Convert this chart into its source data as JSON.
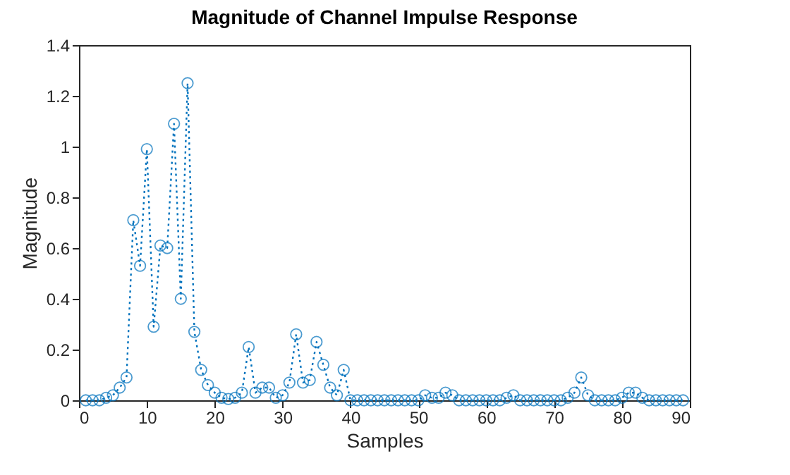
{
  "chart_data": {
    "type": "line",
    "title": "Magnitude of Channel Impulse Response",
    "xlabel": "Samples",
    "ylabel": "Magnitude",
    "x": [
      1,
      2,
      3,
      4,
      5,
      6,
      7,
      8,
      9,
      10,
      11,
      12,
      13,
      14,
      15,
      16,
      17,
      18,
      19,
      20,
      21,
      22,
      23,
      24,
      25,
      26,
      27,
      28,
      29,
      30,
      31,
      32,
      33,
      34,
      35,
      36,
      37,
      38,
      39,
      40,
      41,
      42,
      43,
      44,
      45,
      46,
      47,
      48,
      49,
      50,
      51,
      52,
      53,
      54,
      55,
      56,
      57,
      58,
      59,
      60,
      61,
      62,
      63,
      64,
      65,
      66,
      67,
      68,
      69,
      70,
      71,
      72,
      73,
      74,
      75,
      76,
      77,
      78,
      79,
      80,
      81,
      82,
      83,
      84,
      85,
      86,
      87,
      88,
      89
    ],
    "series": [
      {
        "color": "#0072bd",
        "values": [
          0,
          0,
          0,
          0.01,
          0.02,
          0.05,
          0.09,
          0.71,
          0.53,
          0.99,
          0.29,
          0.61,
          0.6,
          1.09,
          0.4,
          1.25,
          0.27,
          0.12,
          0.06,
          0.03,
          0.01,
          0.005,
          0.01,
          0.03,
          0.21,
          0.03,
          0.05,
          0.05,
          0.01,
          0.02,
          0.07,
          0.26,
          0.07,
          0.08,
          0.23,
          0.14,
          0.05,
          0.02,
          0.12,
          0,
          0,
          0,
          0,
          0,
          0,
          0,
          0,
          0,
          0,
          0,
          0.02,
          0.01,
          0.01,
          0.03,
          0.02,
          0,
          0,
          0,
          0,
          0,
          0,
          0,
          0.01,
          0.02,
          0,
          0,
          0,
          0,
          0,
          0,
          0,
          0.01,
          0.03,
          0.09,
          0.02,
          0,
          0,
          0,
          0,
          0.01,
          0.03,
          0.03,
          0.01,
          0,
          0,
          0,
          0,
          0,
          0
        ]
      }
    ],
    "xlim": [
      0,
      90
    ],
    "xticks": [
      0,
      10,
      20,
      30,
      40,
      50,
      60,
      70,
      80,
      90
    ],
    "ylim": [
      0,
      1.4
    ],
    "yticks": [
      0,
      0.2,
      0.4,
      0.6,
      0.8,
      1,
      1.2,
      1.4
    ],
    "grid": false,
    "marker": "circle",
    "line_style": "dotted"
  }
}
